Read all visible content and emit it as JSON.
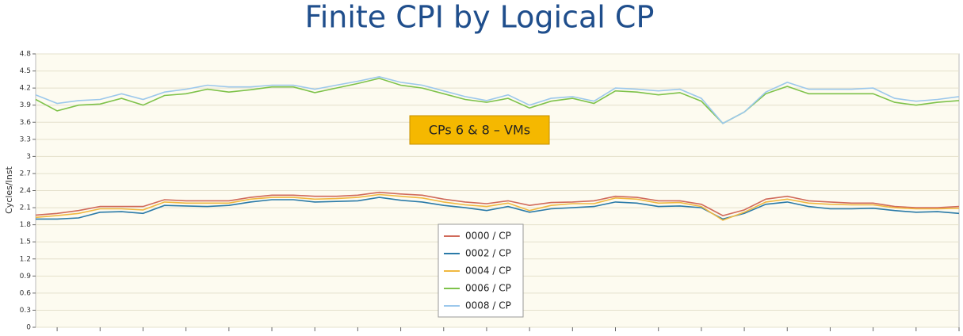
{
  "chart_data": {
    "type": "line",
    "title": "Finite CPI by Logical CP",
    "y_label": "Cycles/Inst",
    "annotation": "CPs 6 & 8 – VMs",
    "categories": [
      null,
      null,
      null,
      null,
      null,
      null,
      null,
      null,
      null,
      null,
      null,
      null,
      null,
      null,
      null,
      null,
      null,
      null,
      null,
      null,
      null,
      null,
      null,
      null,
      null,
      null,
      null,
      null,
      null,
      null,
      null,
      null,
      null,
      null,
      null,
      null,
      null,
      null,
      null,
      null,
      null,
      null,
      null,
      null
    ],
    "ylim": [
      0,
      4.8
    ],
    "yticks": [
      0,
      0.3,
      0.6,
      0.9,
      1.2,
      1.5,
      1.8,
      2.1,
      2.4,
      2.7,
      3,
      3.3,
      3.6,
      3.9,
      4.2,
      4.5,
      4.8
    ],
    "grid": true,
    "series": [
      {
        "name": "0000 / CP",
        "color": "#d06a5a",
        "values": [
          1.97,
          2.0,
          2.05,
          2.12,
          2.12,
          2.12,
          2.24,
          2.22,
          2.22,
          2.22,
          2.28,
          2.32,
          2.32,
          2.3,
          2.3,
          2.32,
          2.37,
          2.34,
          2.32,
          2.25,
          2.2,
          2.17,
          2.22,
          2.14,
          2.19,
          2.2,
          2.22,
          2.3,
          2.28,
          2.22,
          2.22,
          2.16,
          1.96,
          2.06,
          2.25,
          2.3,
          2.22,
          2.2,
          2.18,
          2.18,
          2.12,
          2.1,
          2.1,
          2.12
        ]
      },
      {
        "name": "0002 / CP",
        "color": "#2a7aa8",
        "values": [
          1.9,
          1.9,
          1.92,
          2.02,
          2.03,
          2.0,
          2.14,
          2.13,
          2.12,
          2.14,
          2.2,
          2.24,
          2.24,
          2.2,
          2.21,
          2.22,
          2.28,
          2.23,
          2.2,
          2.14,
          2.1,
          2.05,
          2.12,
          2.02,
          2.08,
          2.1,
          2.12,
          2.2,
          2.18,
          2.12,
          2.13,
          2.1,
          1.9,
          2.0,
          2.16,
          2.2,
          2.12,
          2.08,
          2.08,
          2.09,
          2.05,
          2.02,
          2.03,
          2.0
        ]
      },
      {
        "name": "0004 / CP",
        "color": "#f0b840",
        "values": [
          1.93,
          1.96,
          2.0,
          2.08,
          2.08,
          2.06,
          2.2,
          2.18,
          2.18,
          2.18,
          2.25,
          2.28,
          2.28,
          2.25,
          2.26,
          2.28,
          2.33,
          2.3,
          2.27,
          2.2,
          2.15,
          2.12,
          2.18,
          2.05,
          2.14,
          2.17,
          2.17,
          2.27,
          2.25,
          2.18,
          2.19,
          2.12,
          1.88,
          2.02,
          2.2,
          2.25,
          2.18,
          2.16,
          2.15,
          2.15,
          2.1,
          2.08,
          2.08,
          2.09
        ]
      },
      {
        "name": "0006 / CP",
        "color": "#7ec24a",
        "values": [
          4.0,
          3.8,
          3.9,
          3.92,
          4.02,
          3.9,
          4.07,
          4.1,
          4.18,
          4.13,
          4.17,
          4.22,
          4.22,
          4.12,
          4.2,
          4.28,
          4.37,
          4.25,
          4.2,
          4.1,
          4.0,
          3.95,
          4.02,
          3.85,
          3.97,
          4.02,
          3.93,
          4.15,
          4.13,
          4.08,
          4.12,
          3.97,
          3.58,
          3.78,
          4.1,
          4.23,
          4.1,
          4.1,
          4.1,
          4.1,
          3.95,
          3.9,
          3.95,
          3.98
        ]
      },
      {
        "name": "0008 / CP",
        "color": "#9cc8ec",
        "values": [
          4.08,
          3.93,
          3.98,
          4.0,
          4.1,
          4.0,
          4.13,
          4.18,
          4.25,
          4.22,
          4.22,
          4.25,
          4.25,
          4.18,
          4.25,
          4.32,
          4.4,
          4.3,
          4.25,
          4.15,
          4.05,
          3.98,
          4.08,
          3.9,
          4.02,
          4.05,
          3.97,
          4.2,
          4.18,
          4.15,
          4.18,
          4.02,
          3.58,
          3.78,
          4.13,
          4.3,
          4.18,
          4.18,
          4.18,
          4.2,
          4.02,
          3.97,
          4.0,
          4.05
        ]
      }
    ]
  }
}
